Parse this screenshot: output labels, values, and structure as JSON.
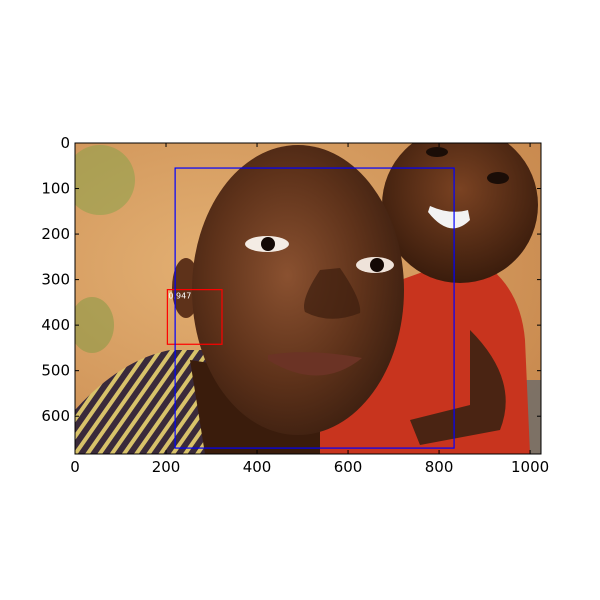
{
  "plot": {
    "image_size": {
      "width": 1024,
      "height": 683
    },
    "x_ticks": [
      0,
      200,
      400,
      600,
      800,
      1000
    ],
    "y_ticks": [
      0,
      100,
      200,
      300,
      400,
      500,
      600
    ]
  },
  "photo": {
    "description": "Close-up photograph of two smiling boys; the nearer boy's face fills the center, a second boy in a red shirt leans in at top-right.",
    "colors": {
      "ground": "#d9a066",
      "grass": "#8aa24a",
      "skin_dark": "#3c1f10",
      "skin_mid": "#6b3a1f",
      "skin_light": "#8a5130",
      "shirt_red": "#c8341e",
      "shirt_stripes_dark": "#3a2a3a",
      "shirt_stripes_light": "#d8c26a"
    }
  },
  "detections": [
    {
      "label": "0.947",
      "color": "#ff0000",
      "x_min": 203,
      "y_min": 322,
      "x_max": 323,
      "y_max": 442
    },
    {
      "label": "",
      "color": "#0000ff",
      "x_min": 220,
      "y_min": 55,
      "x_max": 833,
      "y_max": 670
    }
  ]
}
